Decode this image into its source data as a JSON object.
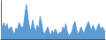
{
  "chart_data": {
    "type": "area",
    "x": [
      0,
      1,
      2,
      3,
      4,
      5,
      6,
      7,
      8,
      9,
      10,
      11,
      12,
      13,
      14,
      15,
      16,
      17,
      18,
      19,
      20,
      21,
      22,
      23,
      24,
      25,
      26,
      27,
      28,
      29,
      30,
      31,
      32,
      33,
      34,
      35,
      36,
      37,
      38,
      39,
      40,
      41,
      42,
      43,
      44,
      45,
      46,
      47,
      48,
      49,
      50,
      51,
      52,
      53,
      54,
      55,
      56,
      57,
      58,
      59,
      60,
      61,
      62,
      63,
      64,
      65,
      66,
      67,
      68,
      69
    ],
    "values": [
      0.55,
      0.52,
      0.6,
      0.48,
      0.58,
      0.45,
      0.5,
      0.52,
      0.42,
      0.38,
      0.5,
      0.45,
      0.6,
      0.55,
      0.48,
      0.55,
      0.78,
      0.95,
      0.68,
      0.5,
      0.45,
      0.65,
      0.52,
      0.42,
      0.55,
      0.48,
      0.72,
      0.58,
      0.42,
      0.38,
      0.45,
      0.52,
      0.42,
      0.35,
      0.45,
      0.38,
      0.48,
      0.42,
      0.35,
      0.42,
      0.38,
      0.52,
      0.45,
      0.58,
      0.42,
      0.35,
      0.38,
      0.42,
      0.55,
      0.62,
      0.48,
      0.38,
      0.42,
      0.52,
      0.45,
      0.38,
      0.48,
      0.55,
      0.62,
      0.52,
      0.45,
      0.55,
      0.48,
      0.42,
      0.52,
      0.58,
      0.45,
      0.52,
      0.48,
      0.42
    ],
    "color": "#5b9bd5",
    "xlim": [
      0,
      69
    ],
    "ylim": [
      0.28,
      1.02
    ],
    "grid": false,
    "tick_labels": false
  }
}
